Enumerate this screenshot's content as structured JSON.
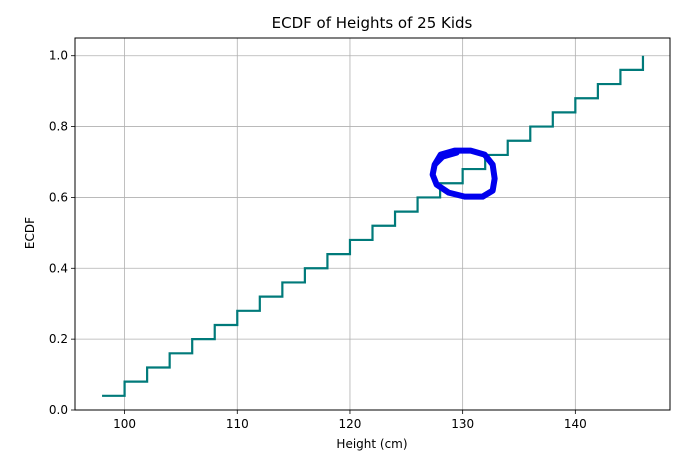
{
  "chart_data": {
    "type": "line",
    "drawstyle": "steps-post",
    "title": "ECDF of Heights of 25 Kids",
    "xlabel": "Height (cm)",
    "ylabel": "ECDF",
    "xlim": [
      95.6,
      148.4
    ],
    "ylim": [
      0.0,
      1.05
    ],
    "xticks": [
      100,
      110,
      120,
      130,
      140
    ],
    "yticks": [
      0.0,
      0.2,
      0.4,
      0.6,
      0.8,
      1.0
    ],
    "xtick_labels": [
      "100",
      "110",
      "120",
      "130",
      "140"
    ],
    "ytick_labels": [
      "0.0",
      "0.2",
      "0.4",
      "0.6",
      "0.8",
      "1.0"
    ],
    "grid": true,
    "series": [
      {
        "color": "#007a7a",
        "x": [
          98,
          100,
          102,
          104,
          106,
          108,
          110,
          112,
          114,
          116,
          118,
          120,
          122,
          124,
          126,
          128,
          130,
          132,
          134,
          136,
          138,
          140,
          142,
          144,
          146
        ],
        "y": [
          0.04,
          0.08,
          0.12,
          0.16,
          0.2,
          0.24,
          0.28,
          0.32,
          0.36,
          0.4,
          0.44,
          0.48,
          0.52,
          0.56,
          0.6,
          0.64,
          0.68,
          0.72,
          0.76,
          0.8,
          0.84,
          0.88,
          0.92,
          0.96,
          1.0
        ]
      }
    ],
    "annotations": [
      {
        "type": "hand-drawn-circle",
        "color": "#0000ee",
        "x": 130,
        "y": 0.67
      }
    ]
  }
}
